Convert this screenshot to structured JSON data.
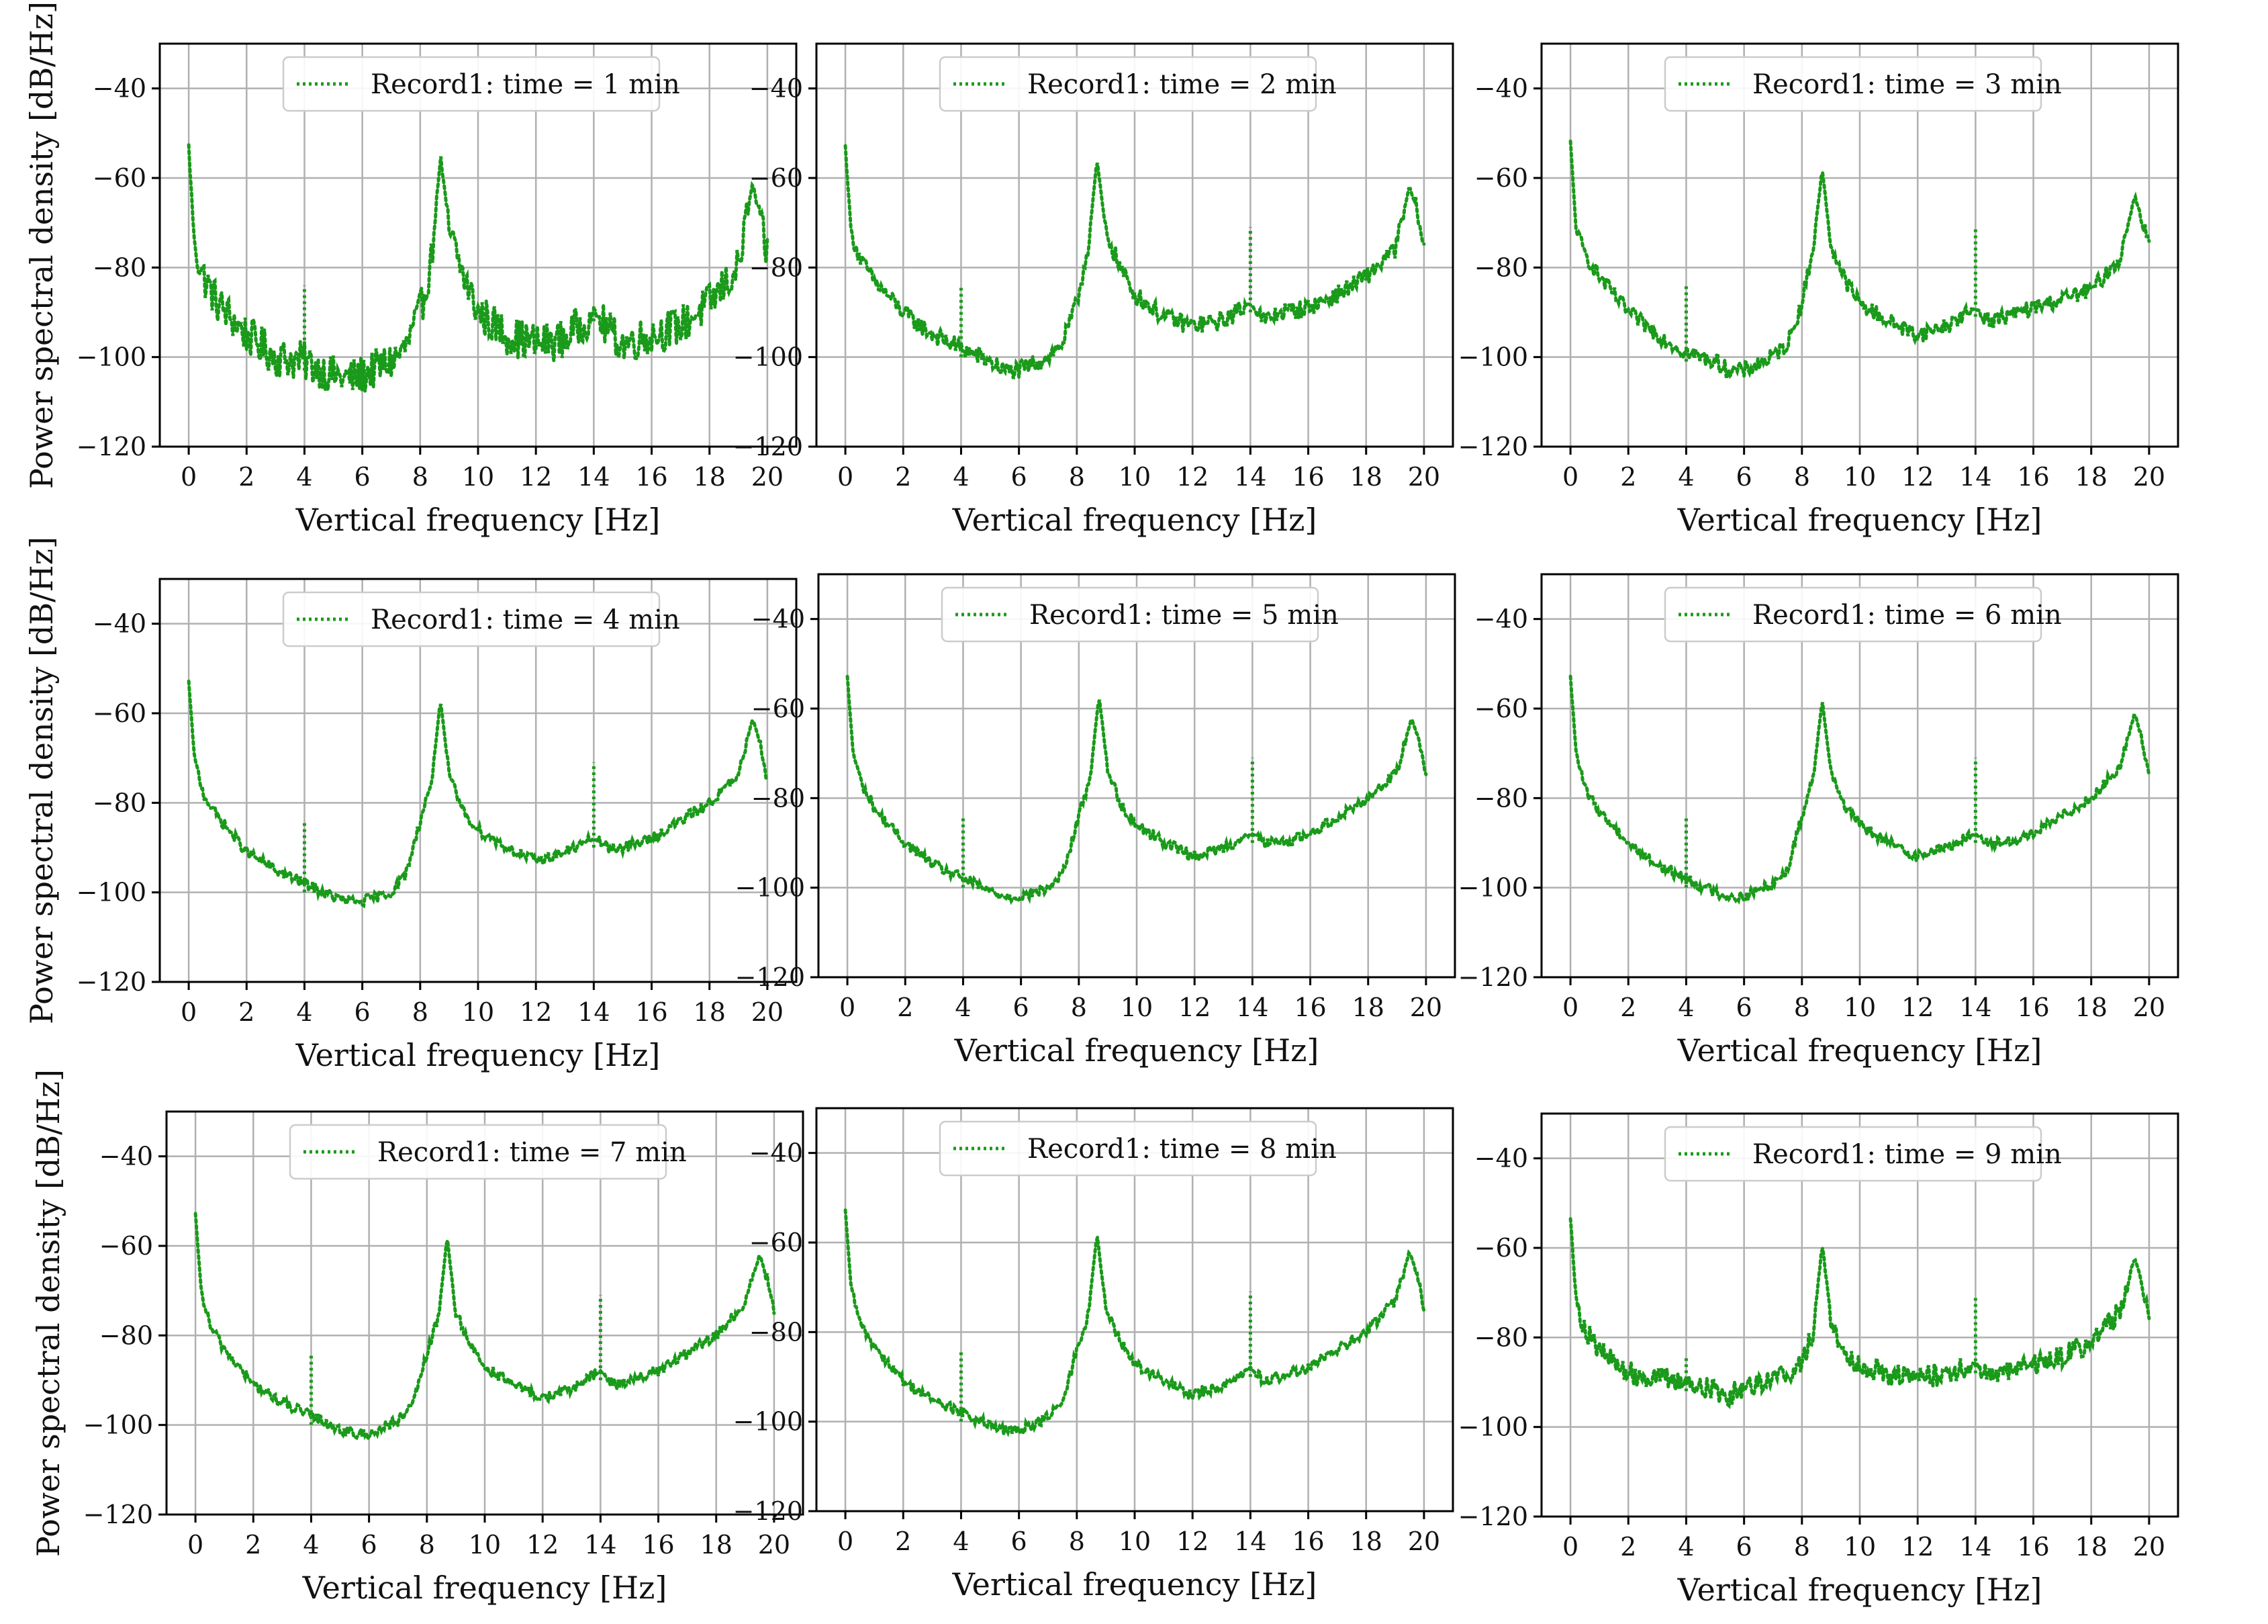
{
  "figure": {
    "series_color": "#1a9a1a",
    "grid_color": "#b0b0b0",
    "legend_border_color": "#cccccc"
  },
  "chart_data": [
    {
      "type": "line",
      "title": "",
      "xlabel": "Vertical frequency [Hz]",
      "ylabel": "Power spectral density [dB/Hz]",
      "xlim": [
        -1,
        21
      ],
      "ylim": [
        -120,
        -30
      ],
      "xticks": [
        0,
        2,
        4,
        6,
        8,
        10,
        12,
        14,
        16,
        18,
        20
      ],
      "yticks": [
        -120,
        -100,
        -80,
        -60,
        -40
      ],
      "grid": true,
      "legend_position": "top-center",
      "series": [
        {
          "name": "Record1: time = 1 min",
          "style": "dotted",
          "color": "#1a9a1a",
          "noise_db": 4.5,
          "x": [
            0,
            0.2,
            0.5,
            1,
            2,
            3,
            4,
            5,
            5.5,
            6,
            7,
            7.5,
            8,
            8.4,
            8.7,
            9,
            9.5,
            10,
            11,
            12,
            13,
            14,
            14.5,
            15,
            16,
            17,
            18,
            19,
            19.5,
            19.8,
            20
          ],
          "y": [
            -53,
            -75,
            -82,
            -88,
            -95,
            -100,
            -101,
            -104,
            -105,
            -104,
            -101,
            -98,
            -90,
            -78,
            -55,
            -72,
            -82,
            -90,
            -95,
            -97,
            -96,
            -90,
            -94,
            -97,
            -95,
            -93,
            -88,
            -80,
            -61,
            -72,
            -77
          ]
        }
      ]
    },
    {
      "type": "line",
      "title": "",
      "xlabel": "Vertical frequency [Hz]",
      "ylabel": "",
      "xlim": [
        -1,
        21
      ],
      "ylim": [
        -120,
        -30
      ],
      "xticks": [
        0,
        2,
        4,
        6,
        8,
        10,
        12,
        14,
        16,
        18,
        20
      ],
      "yticks": [
        -120,
        -100,
        -80,
        -60,
        -40
      ],
      "grid": true,
      "legend_position": "top-center",
      "series": [
        {
          "name": "Record1: time = 2 min",
          "style": "dotted",
          "color": "#1a9a1a",
          "noise_db": 2.0,
          "x": [
            0,
            0.2,
            0.5,
            1,
            2,
            3,
            4,
            5,
            5.5,
            6,
            7,
            7.5,
            8,
            8.4,
            8.7,
            9,
            9.5,
            10,
            11,
            12,
            13,
            14,
            14.5,
            15,
            16,
            17,
            18,
            19,
            19.5,
            19.8,
            20
          ],
          "y": [
            -53,
            -72,
            -78,
            -83,
            -90,
            -95,
            -98,
            -101,
            -103,
            -103,
            -100,
            -97,
            -88,
            -75,
            -56,
            -72,
            -80,
            -86,
            -91,
            -93,
            -92,
            -88,
            -92,
            -90,
            -89,
            -86,
            -82,
            -76,
            -62,
            -68,
            -76
          ]
        }
      ]
    },
    {
      "type": "line",
      "title": "",
      "xlabel": "Vertical frequency [Hz]",
      "ylabel": "",
      "xlim": [
        -1,
        21
      ],
      "ylim": [
        -120,
        -30
      ],
      "xticks": [
        0,
        2,
        4,
        6,
        8,
        10,
        12,
        14,
        16,
        18,
        20
      ],
      "yticks": [
        -120,
        -100,
        -80,
        -60,
        -40
      ],
      "grid": true,
      "legend_position": "top-center",
      "series": [
        {
          "name": "Record1: time = 3 min",
          "style": "dotted",
          "color": "#1a9a1a",
          "noise_db": 1.8,
          "x": [
            0,
            0.2,
            0.5,
            1,
            2,
            3,
            4,
            5,
            5.5,
            6,
            7,
            7.5,
            8,
            8.4,
            8.7,
            9,
            9.5,
            10,
            11,
            12,
            13,
            14,
            14.5,
            15,
            16,
            17,
            18,
            19,
            19.5,
            19.8,
            20
          ],
          "y": [
            -52,
            -72,
            -77,
            -82,
            -90,
            -95,
            -99,
            -101,
            -103,
            -103,
            -100,
            -97,
            -88,
            -75,
            -58,
            -75,
            -83,
            -88,
            -92,
            -95,
            -93,
            -89,
            -92,
            -91,
            -89,
            -87,
            -85,
            -78,
            -64,
            -70,
            -75
          ]
        }
      ]
    },
    {
      "type": "line",
      "title": "",
      "xlabel": "Vertical frequency [Hz]",
      "ylabel": "Power spectral density [dB/Hz]",
      "xlim": [
        -1,
        21
      ],
      "ylim": [
        -120,
        -30
      ],
      "xticks": [
        0,
        2,
        4,
        6,
        8,
        10,
        12,
        14,
        16,
        18,
        20
      ],
      "yticks": [
        -120,
        -100,
        -80,
        -60,
        -40
      ],
      "grid": true,
      "legend_position": "top-center",
      "series": [
        {
          "name": "Record1: time = 4 min",
          "style": "dotted",
          "color": "#1a9a1a",
          "noise_db": 1.2,
          "x": [
            0,
            0.2,
            0.5,
            1,
            2,
            3,
            4,
            5,
            5.5,
            6,
            7,
            7.5,
            8,
            8.4,
            8.7,
            9,
            9.5,
            10,
            11,
            12,
            13,
            14,
            14.5,
            15,
            16,
            17,
            18,
            19,
            19.5,
            19.8,
            20
          ],
          "y": [
            -53,
            -70,
            -78,
            -83,
            -91,
            -95,
            -98,
            -101,
            -102,
            -102,
            -100,
            -96,
            -84,
            -75,
            -57,
            -74,
            -82,
            -86,
            -90,
            -93,
            -91,
            -88,
            -90,
            -90,
            -88,
            -84,
            -80,
            -74,
            -61,
            -68,
            -75
          ]
        }
      ]
    },
    {
      "type": "line",
      "title": "",
      "xlabel": "Vertical frequency [Hz]",
      "ylabel": "",
      "xlim": [
        -1,
        21
      ],
      "ylim": [
        -120,
        -30
      ],
      "xticks": [
        0,
        2,
        4,
        6,
        8,
        10,
        12,
        14,
        16,
        18,
        20
      ],
      "yticks": [
        -120,
        -100,
        -80,
        -60,
        -40
      ],
      "grid": true,
      "legend_position": "top-center",
      "series": [
        {
          "name": "Record1: time = 5 min",
          "style": "dotted",
          "color": "#1a9a1a",
          "noise_db": 1.2,
          "x": [
            0,
            0.2,
            0.5,
            1,
            2,
            3,
            4,
            5,
            5.5,
            6,
            7,
            7.5,
            8,
            8.4,
            8.7,
            9,
            9.5,
            10,
            11,
            12,
            13,
            14,
            14.5,
            15,
            16,
            17,
            18,
            19,
            19.5,
            19.8,
            20
          ],
          "y": [
            -53,
            -70,
            -77,
            -83,
            -90,
            -95,
            -98,
            -101,
            -102,
            -102,
            -100,
            -96,
            -84,
            -75,
            -57,
            -74,
            -82,
            -86,
            -90,
            -93,
            -91,
            -88,
            -90,
            -90,
            -88,
            -84,
            -80,
            -74,
            -62,
            -68,
            -75
          ]
        }
      ]
    },
    {
      "type": "line",
      "title": "",
      "xlabel": "Vertical frequency [Hz]",
      "ylabel": "",
      "xlim": [
        -1,
        21
      ],
      "ylim": [
        -120,
        -30
      ],
      "xticks": [
        0,
        2,
        4,
        6,
        8,
        10,
        12,
        14,
        16,
        18,
        20
      ],
      "yticks": [
        -120,
        -100,
        -80,
        -60,
        -40
      ],
      "grid": true,
      "legend_position": "top-center",
      "series": [
        {
          "name": "Record1: time = 6 min",
          "style": "dotted",
          "color": "#1a9a1a",
          "noise_db": 1.2,
          "x": [
            0,
            0.2,
            0.5,
            1,
            2,
            3,
            4,
            5,
            5.5,
            6,
            7,
            7.5,
            8,
            8.4,
            8.7,
            9,
            9.5,
            10,
            11,
            12,
            13,
            14,
            14.5,
            15,
            16,
            17,
            18,
            19,
            19.5,
            19.8,
            20
          ],
          "y": [
            -53,
            -70,
            -78,
            -83,
            -90,
            -95,
            -98,
            -101,
            -102,
            -102,
            -99,
            -96,
            -84,
            -75,
            -58,
            -74,
            -82,
            -86,
            -90,
            -93,
            -91,
            -88,
            -90,
            -90,
            -88,
            -84,
            -80,
            -73,
            -61,
            -68,
            -75
          ]
        }
      ]
    },
    {
      "type": "line",
      "title": "",
      "xlabel": "Vertical frequency [Hz]",
      "ylabel": "Power spectral density [dB/Hz]",
      "xlim": [
        -1,
        21
      ],
      "ylim": [
        -120,
        -30
      ],
      "xticks": [
        0,
        2,
        4,
        6,
        8,
        10,
        12,
        14,
        16,
        18,
        20
      ],
      "yticks": [
        -120,
        -100,
        -80,
        -60,
        -40
      ],
      "grid": true,
      "legend_position": "top-center",
      "series": [
        {
          "name": "Record1: time = 7 min",
          "style": "dotted",
          "color": "#1a9a1a",
          "noise_db": 1.2,
          "x": [
            0,
            0.2,
            0.5,
            1,
            2,
            3,
            4,
            5,
            5.5,
            6,
            7,
            7.5,
            8,
            8.4,
            8.7,
            9,
            9.5,
            10,
            11,
            12,
            13,
            14,
            14.5,
            15,
            16,
            17,
            18,
            19,
            19.5,
            19.8,
            20
          ],
          "y": [
            -53,
            -70,
            -78,
            -83,
            -91,
            -95,
            -98,
            -101,
            -102,
            -102,
            -99,
            -96,
            -84,
            -76,
            -58,
            -75,
            -82,
            -87,
            -91,
            -94,
            -92,
            -88,
            -91,
            -90,
            -88,
            -84,
            -80,
            -73,
            -62,
            -68,
            -75
          ]
        }
      ]
    },
    {
      "type": "line",
      "title": "",
      "xlabel": "Vertical frequency [Hz]",
      "ylabel": "",
      "xlim": [
        -1,
        21
      ],
      "ylim": [
        -120,
        -30
      ],
      "xticks": [
        0,
        2,
        4,
        6,
        8,
        10,
        12,
        14,
        16,
        18,
        20
      ],
      "yticks": [
        -120,
        -100,
        -80,
        -60,
        -40
      ],
      "grid": true,
      "legend_position": "top-center",
      "series": [
        {
          "name": "Record1: time = 8 min",
          "style": "dotted",
          "color": "#1a9a1a",
          "noise_db": 1.2,
          "x": [
            0,
            0.2,
            0.5,
            1,
            2,
            3,
            4,
            5,
            5.5,
            6,
            7,
            7.5,
            8,
            8.4,
            8.7,
            9,
            9.5,
            10,
            11,
            12,
            13,
            14,
            14.5,
            15,
            16,
            17,
            18,
            19,
            19.5,
            19.8,
            20
          ],
          "y": [
            -53,
            -70,
            -78,
            -83,
            -91,
            -95,
            -98,
            -101,
            -102,
            -102,
            -99,
            -96,
            -84,
            -76,
            -58,
            -75,
            -82,
            -87,
            -91,
            -94,
            -92,
            -88,
            -91,
            -90,
            -88,
            -84,
            -80,
            -73,
            -62,
            -68,
            -75
          ]
        }
      ]
    },
    {
      "type": "line",
      "title": "",
      "xlabel": "Vertical frequency [Hz]",
      "ylabel": "",
      "xlim": [
        -1,
        21
      ],
      "ylim": [
        -120,
        -30
      ],
      "xticks": [
        0,
        2,
        4,
        6,
        8,
        10,
        12,
        14,
        16,
        18,
        20
      ],
      "yticks": [
        -120,
        -100,
        -80,
        -60,
        -40
      ],
      "grid": true,
      "legend_position": "top-center",
      "series": [
        {
          "name": "Record1: time = 9 min",
          "style": "dotted",
          "color": "#1a9a1a",
          "noise_db": 2.5,
          "x": [
            0,
            0.2,
            0.5,
            1,
            2,
            3,
            4,
            5,
            5.5,
            6,
            7,
            7.5,
            8,
            8.4,
            8.7,
            9,
            9.5,
            10,
            11,
            12,
            13,
            14,
            14.5,
            15,
            16,
            17,
            18,
            19,
            19.5,
            19.8,
            20
          ],
          "y": [
            -53,
            -72,
            -78,
            -83,
            -88,
            -89,
            -90,
            -92,
            -93,
            -91,
            -89,
            -88,
            -86,
            -78,
            -59,
            -76,
            -84,
            -86,
            -88,
            -89,
            -88,
            -86,
            -88,
            -88,
            -86,
            -84,
            -81,
            -74,
            -62,
            -69,
            -75
          ]
        }
      ]
    }
  ]
}
